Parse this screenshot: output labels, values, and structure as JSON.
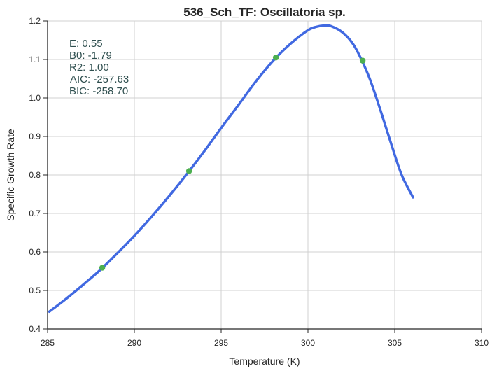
{
  "chart_data": {
    "type": "line",
    "title": "536_Sch_TF: Oscillatoria sp.",
    "xlabel": "Temperature (K)",
    "ylabel": "Specific Growth Rate",
    "xlim": [
      285,
      310
    ],
    "ylim": [
      0.4,
      1.2
    ],
    "xticks": [
      "285",
      "290",
      "295",
      "300",
      "305",
      "310"
    ],
    "yticks": [
      "0.4",
      "0.5",
      "0.6",
      "0.7",
      "0.8",
      "0.9",
      "1.0",
      "1.1",
      "1.2"
    ],
    "grid": true,
    "series": [
      {
        "kind": "line",
        "color": "#4169e1",
        "x": [
          285.1,
          286,
          287,
          288,
          289,
          290,
          291,
          292,
          293,
          294,
          295,
          296,
          297,
          298,
          299,
          300,
          300.5,
          300.9,
          301.3,
          302,
          302.6,
          303.1,
          303.6,
          304.2,
          304.8,
          305.4,
          306.05
        ],
        "y": [
          0.445,
          0.476,
          0.513,
          0.552,
          0.596,
          0.642,
          0.692,
          0.745,
          0.801,
          0.86,
          0.922,
          0.982,
          1.043,
          1.097,
          1.141,
          1.176,
          1.185,
          1.188,
          1.187,
          1.17,
          1.14,
          1.098,
          1.045,
          0.965,
          0.88,
          0.8,
          0.742
        ]
      },
      {
        "kind": "scatter",
        "color": "#4caf50",
        "x": [
          288.15,
          293.15,
          298.15,
          303.15
        ],
        "y": [
          0.559,
          0.81,
          1.105,
          1.097
        ]
      }
    ],
    "annotations": [
      "E:  0.55",
      "B0:  -1.79",
      "R2:  1.00",
      "AIC: -257.63",
      "BIC: -258.70"
    ],
    "annotation_color": "#2f4f4f"
  }
}
